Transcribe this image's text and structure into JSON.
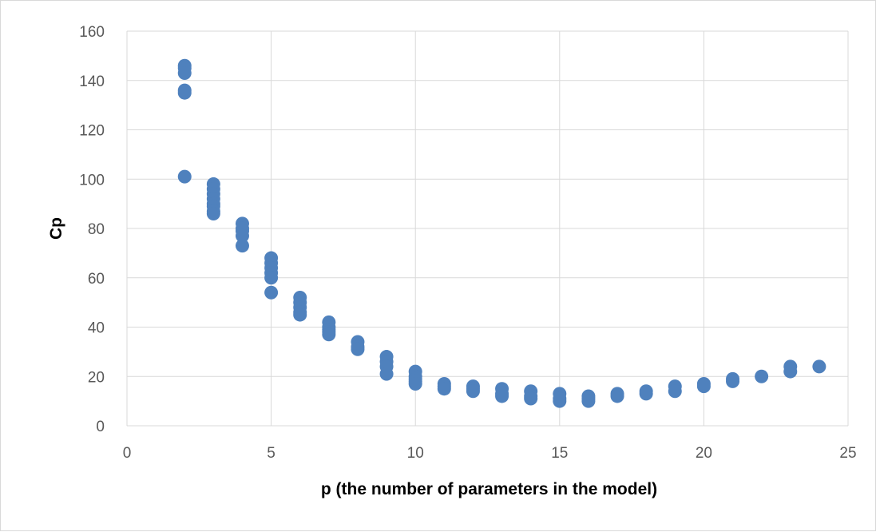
{
  "chart_data": {
    "type": "scatter",
    "title": "",
    "xlabel": "p (the number of parameters in the model)",
    "ylabel": "Cp",
    "xlim": [
      0,
      25
    ],
    "ylim": [
      0,
      160
    ],
    "xticks": [
      0,
      5,
      10,
      15,
      20,
      25
    ],
    "yticks": [
      0,
      20,
      40,
      60,
      80,
      100,
      120,
      140,
      160
    ],
    "grid": true,
    "legend": "none",
    "marker_color": "#4f81bd",
    "gridline_color": "#d9d9d9",
    "series": [
      {
        "x": [
          2,
          2,
          2,
          2,
          2,
          2,
          3,
          3,
          3,
          3,
          3,
          3,
          3,
          3,
          4,
          4,
          4,
          4,
          4,
          5,
          5,
          5,
          5,
          5,
          5,
          6,
          6,
          6,
          6,
          6,
          7,
          7,
          7,
          7,
          7,
          8,
          8,
          8,
          9,
          9,
          9,
          9,
          10,
          10,
          10,
          10,
          10,
          11,
          11,
          11,
          12,
          12,
          12,
          13,
          13,
          13,
          14,
          14,
          14,
          15,
          15,
          15,
          16,
          16,
          16,
          17,
          17,
          18,
          18,
          19,
          19,
          20,
          20,
          21,
          21,
          22,
          23,
          23,
          24
        ],
        "y": [
          146,
          145,
          143,
          136,
          135,
          101,
          98,
          96,
          94,
          92,
          90,
          89,
          87,
          86,
          82,
          80,
          79,
          77,
          73,
          68,
          66,
          64,
          62,
          60,
          54,
          52,
          50,
          48,
          46,
          45,
          42,
          40,
          39,
          38,
          37,
          34,
          32,
          31,
          28,
          26,
          24,
          21,
          22,
          20,
          19,
          18,
          17,
          17,
          16,
          15,
          16,
          15,
          14,
          15,
          13,
          12,
          14,
          12,
          11,
          13,
          11,
          10,
          12,
          11,
          10,
          13,
          12,
          14,
          13,
          16,
          14,
          17,
          16,
          19,
          18,
          20,
          24,
          22,
          24
        ]
      }
    ]
  }
}
